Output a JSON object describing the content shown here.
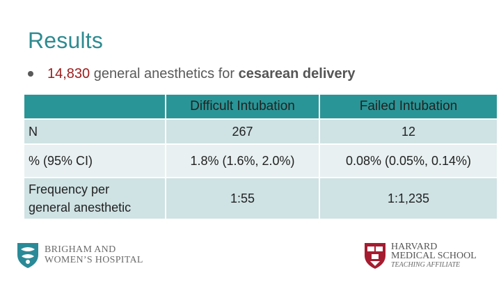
{
  "slide": {
    "title": "Results",
    "bullet": {
      "number": "14,830",
      "text_mid": "general anesthetics for",
      "text_bold": "cesarean delivery"
    }
  },
  "table": {
    "columns": [
      "",
      "Difficult Intubation",
      "Failed Intubation"
    ],
    "rows": [
      {
        "label": "N",
        "difficult": "267",
        "failed": "12"
      },
      {
        "label": "% (95% CI)",
        "difficult": "1.8% (1.6%, 2.0%)",
        "failed": "0.08% (0.05%, 0.14%)"
      },
      {
        "label_line1": "Frequency per",
        "label_line2": "general anesthetic",
        "difficult": "1:55",
        "failed": "1:1,235"
      }
    ]
  },
  "logos": {
    "brigham": {
      "line1": "BRIGHAM AND",
      "line2": "WOMEN’S HOSPITAL",
      "icon": "brigham-shield-icon"
    },
    "harvard": {
      "line1": "HARVARD",
      "line2": "MEDICAL SCHOOL",
      "line3": "TEACHING AFFILIATE",
      "icon": "harvard-shield-icon"
    }
  },
  "colors": {
    "title": "#2e8b90",
    "header_bg": "#2a9596",
    "row_dark": "#cfe2e4",
    "row_light": "#e8f0f1",
    "highlight_number": "#9c1c1c"
  }
}
